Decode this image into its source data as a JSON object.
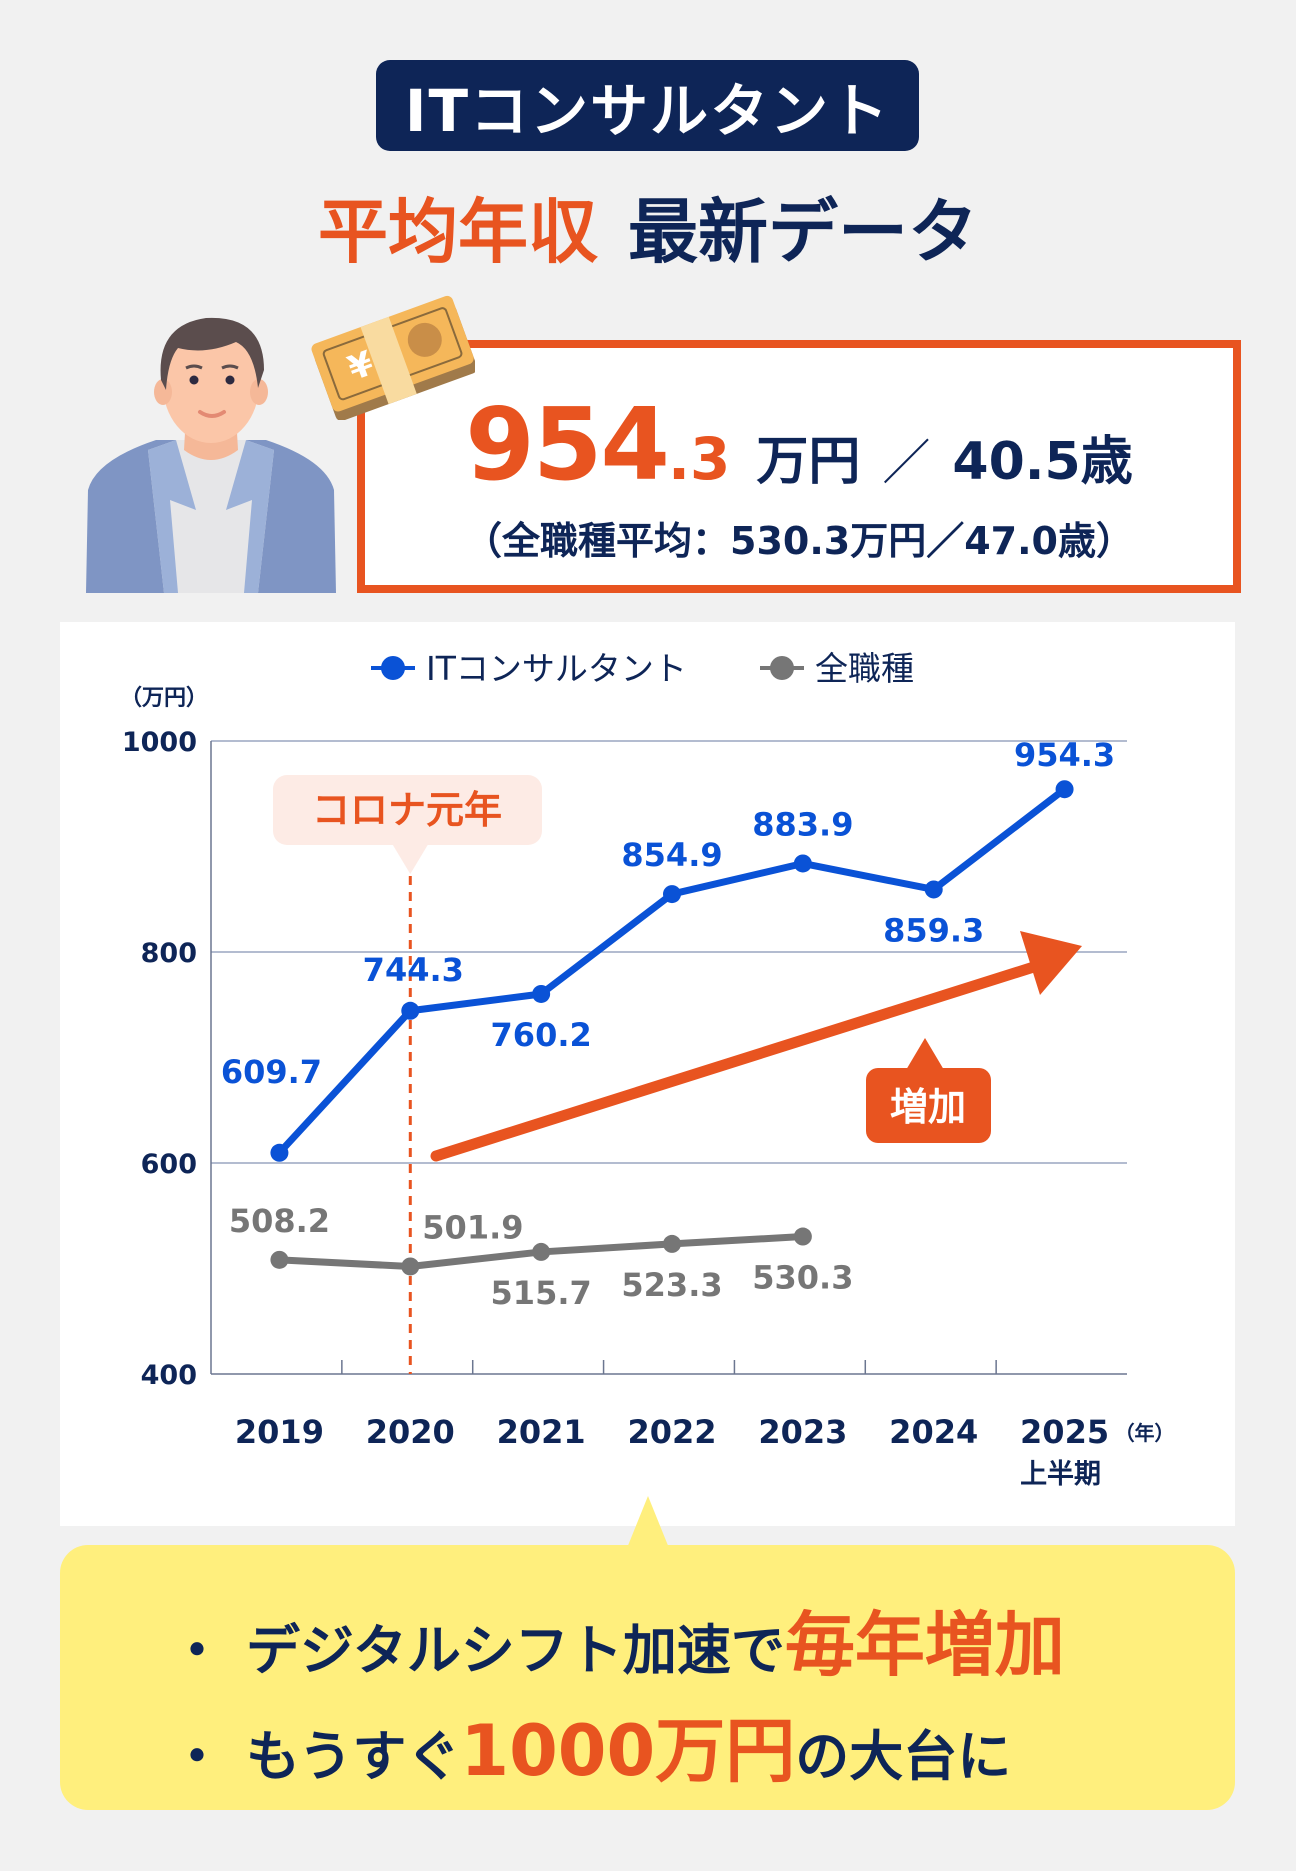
{
  "header": {
    "badge": "ITコンサルタント",
    "title_accent": "平均年収",
    "title_main": "最新データ"
  },
  "summary": {
    "salary_int": "954",
    "salary_dec": ".3",
    "salary_unit": "万円",
    "separator": "／",
    "age": "40.5歳",
    "comparison": "（全職種平均：530.3万円／47.0歳）"
  },
  "icons": {
    "person": "businessman-avatar",
    "money": "yen-bill-stack-icon"
  },
  "colors": {
    "navy": "#0e2557",
    "accent_orange": "#e85420",
    "series_blue": "#0a52d6",
    "series_gray": "#767676",
    "callout_yellow": "#ffef7d",
    "bubble_pink": "#fdebe5",
    "background": "#f1f1f1"
  },
  "chart_data": {
    "type": "line",
    "title": "",
    "xlabel": "（年）",
    "ylabel": "（万円）",
    "ylim": [
      400,
      1000
    ],
    "yticks": [
      400,
      600,
      800,
      1000
    ],
    "grid": true,
    "legend_position": "top",
    "categories": [
      "2019",
      "2020",
      "2021",
      "2022",
      "2023",
      "2024",
      "2025"
    ],
    "category_sublabels": [
      "",
      "",
      "",
      "",
      "",
      "",
      "上半期"
    ],
    "series": [
      {
        "name": "ITコンサルタント",
        "color": "#0a52d6",
        "values": [
          609.7,
          744.3,
          760.2,
          854.9,
          883.9,
          859.3,
          954.3
        ],
        "label_pos": [
          "above",
          "above",
          "below",
          "above",
          "above",
          "below",
          "above"
        ]
      },
      {
        "name": "全職種",
        "color": "#767676",
        "values": [
          508.2,
          501.9,
          515.7,
          523.3,
          530.3,
          null,
          null
        ],
        "label_pos": [
          "above",
          "above-right",
          "below",
          "below",
          "below",
          null,
          null
        ]
      }
    ],
    "annotations": [
      {
        "type": "vline",
        "at": "2020",
        "label": "コロナ元年",
        "style": "dotted",
        "color": "#e85420"
      },
      {
        "type": "trend-arrow",
        "label": "増加",
        "color": "#e85420"
      }
    ]
  },
  "callout": {
    "line1_prefix": "デジタルシフト加速で",
    "line1_highlight": "毎年増加",
    "line2_prefix": "もうすぐ",
    "line2_highlight": "1000万円",
    "line2_suffix": "の大台に",
    "bullet": "・"
  }
}
